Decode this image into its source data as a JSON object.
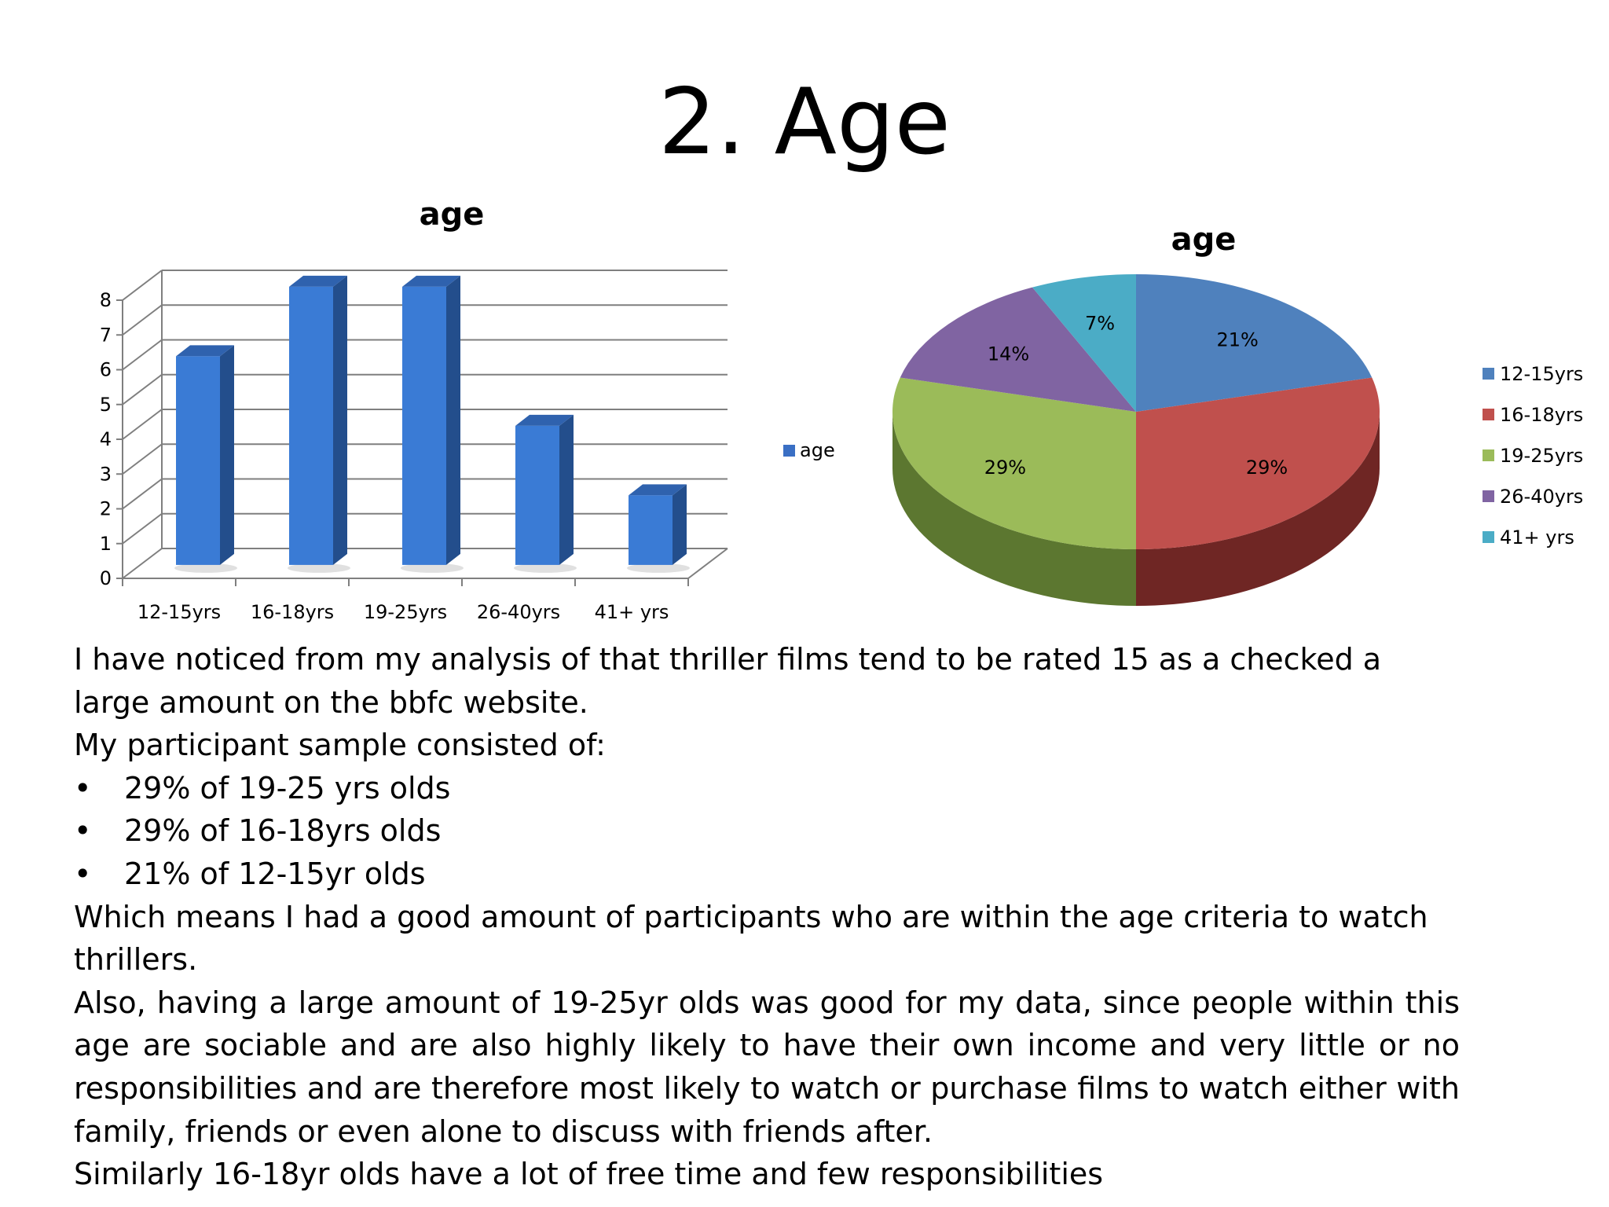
{
  "title": "2. Age",
  "colors": {
    "bar_front": "#3A7BD5",
    "bar_side": "#234E8C",
    "bar_top": "#2F62AE",
    "grid": "#7F7F7F",
    "legend_age": "#3A6FC4",
    "pie_slices": [
      "#4F81BD",
      "#C0504D",
      "#9BBB59",
      "#8064A2",
      "#4BACC6"
    ],
    "pie_sides": [
      "#31547F",
      "#6F2624",
      "#5C7730",
      "#4E3D66",
      "#2F7188"
    ]
  },
  "chart_data": [
    {
      "type": "bar",
      "title": "age",
      "categories": [
        "12-15yrs",
        "16-18yrs",
        "19-25yrs",
        "26-40yrs",
        "41+ yrs"
      ],
      "series": [
        {
          "name": "age",
          "values": [
            6,
            8,
            8,
            4,
            2
          ]
        }
      ],
      "ylim": [
        0,
        8
      ],
      "yticks": [
        "0",
        "1",
        "2",
        "3",
        "4",
        "5",
        "6",
        "7",
        "8"
      ],
      "grid": true,
      "legend": "right"
    },
    {
      "type": "pie",
      "title": "age",
      "labels": [
        "12-15yrs",
        "16-18yrs",
        "19-25yrs",
        "26-40yrs",
        "41+ yrs"
      ],
      "values": [
        21,
        29,
        29,
        14,
        7
      ],
      "data_labels": [
        "21%",
        "29%",
        "29%",
        "14%",
        "7%"
      ],
      "legend": "right"
    }
  ],
  "text": {
    "para1": "I have noticed from my analysis of that thriller films tend to be rated 15 as a checked a large amount on the bbfc website.",
    "para2": "My participant sample consisted of:",
    "bullets": [
      "29% of 19-25 yrs olds",
      "29% of 16-18yrs olds",
      "21% of 12-15yr olds"
    ],
    "para3": "Which means I had a good amount of participants who are within the age criteria to watch thrillers.",
    "para4": "Also, having a large amount of 19-25yr olds was good for my data, since people within this age are sociable and are also highly likely to have their own income and very little or no responsibilities and are therefore most likely to watch or purchase films to watch either with family, friends or even alone to discuss with friends after.",
    "para5": "Similarly 16-18yr olds have a lot of free time and few responsibilities"
  }
}
